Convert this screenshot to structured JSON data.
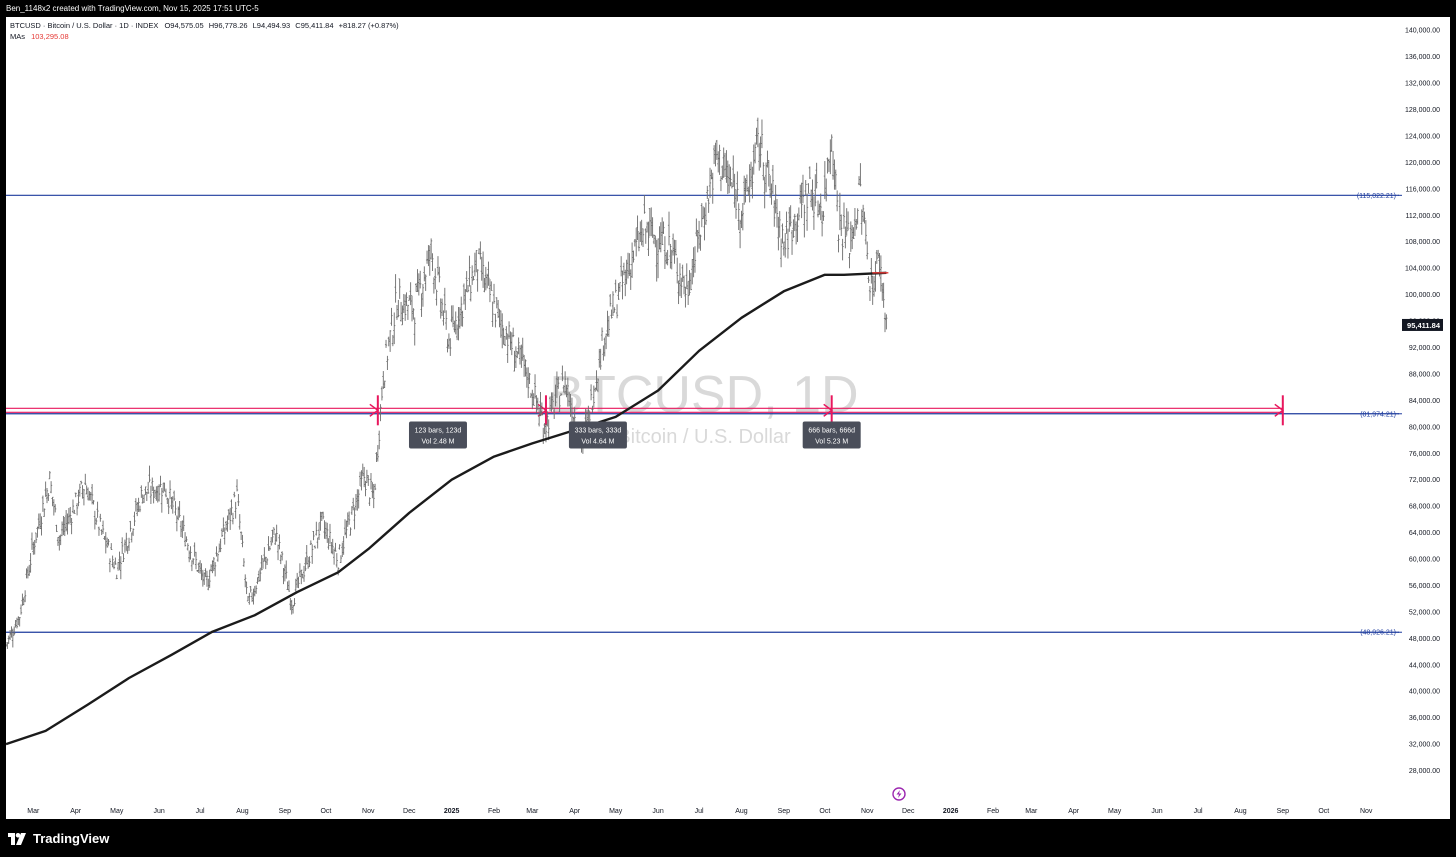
{
  "header": {
    "caption": "Ben_1148x2 created with TradingView.com, Nov 15, 2025 17:51 UTC-5",
    "symbol_line": "BTCUSD · Bitcoin / U.S. Dollar · 1D · INDEX",
    "ohlc": {
      "open": "O94,575.05",
      "high": "H96,778.26",
      "low": "L94,494.93",
      "close": "C95,411.84",
      "change": "+818.27 (+0.87%)"
    },
    "ma_label": "MAs",
    "ma_value": "103,295.08"
  },
  "watermark": {
    "symbol": "BTCUSD, 1D",
    "name": "Bitcoin / U.S. Dollar"
  },
  "footer": {
    "brand": "TradingView"
  },
  "colors": {
    "price_bars": "#6b6b6b",
    "moving_average": "#1b1b1b",
    "horizontal_lines": "#1e3c9e",
    "measure_tool": "#e8175d",
    "ma_value_text": "#e53935",
    "label_bg": "#4a4e5a"
  },
  "chart_data": {
    "type": "ohlc",
    "title": "BTCUSD · Bitcoin / U.S. Dollar · 1D · INDEX",
    "y_range": [
      24000,
      142000
    ],
    "y_ticks": [
      "140,000.00",
      "136,000.00",
      "132,000.00",
      "128,000.00",
      "124,000.00",
      "120,000.00",
      "116,000.00",
      "112,000.00",
      "108,000.00",
      "104,000.00",
      "100,000.00",
      "96,000.00",
      "92,000.00",
      "88,000.00",
      "84,000.00",
      "80,000.00",
      "76,000.00",
      "72,000.00",
      "68,000.00",
      "64,000.00",
      "60,000.00",
      "56,000.00",
      "52,000.00",
      "48,000.00",
      "44,000.00",
      "40,000.00",
      "36,000.00",
      "32,000.00",
      "28,000.00"
    ],
    "x_range": [
      "2024-02-10",
      "2026-11-25"
    ],
    "x_ticks": [
      {
        "label": "Mar",
        "date": "2024-03-01"
      },
      {
        "label": "Apr",
        "date": "2024-04-01"
      },
      {
        "label": "May",
        "date": "2024-05-01"
      },
      {
        "label": "Jun",
        "date": "2024-06-01"
      },
      {
        "label": "Jul",
        "date": "2024-07-01"
      },
      {
        "label": "Aug",
        "date": "2024-08-01"
      },
      {
        "label": "Sep",
        "date": "2024-09-01"
      },
      {
        "label": "Oct",
        "date": "2024-10-01"
      },
      {
        "label": "Nov",
        "date": "2024-11-01"
      },
      {
        "label": "Dec",
        "date": "2024-12-01"
      },
      {
        "label": "2025",
        "date": "2025-01-01",
        "bold": true
      },
      {
        "label": "Feb",
        "date": "2025-02-01"
      },
      {
        "label": "Mar",
        "date": "2025-03-01"
      },
      {
        "label": "Apr",
        "date": "2025-04-01"
      },
      {
        "label": "May",
        "date": "2025-05-01"
      },
      {
        "label": "Jun",
        "date": "2025-06-01"
      },
      {
        "label": "Jul",
        "date": "2025-07-01"
      },
      {
        "label": "Aug",
        "date": "2025-08-01"
      },
      {
        "label": "Sep",
        "date": "2025-09-01"
      },
      {
        "label": "Oct",
        "date": "2025-10-01"
      },
      {
        "label": "Nov",
        "date": "2025-11-01"
      },
      {
        "label": "Dec",
        "date": "2025-12-01"
      },
      {
        "label": "2026",
        "date": "2026-01-01",
        "bold": true
      },
      {
        "label": "Feb",
        "date": "2026-02-01"
      },
      {
        "label": "Mar",
        "date": "2026-03-01"
      },
      {
        "label": "Apr",
        "date": "2026-04-01"
      },
      {
        "label": "May",
        "date": "2026-05-01"
      },
      {
        "label": "Jun",
        "date": "2026-06-01"
      },
      {
        "label": "Jul",
        "date": "2026-07-01"
      },
      {
        "label": "Aug",
        "date": "2026-08-01"
      },
      {
        "label": "Sep",
        "date": "2026-09-01"
      },
      {
        "label": "Oct",
        "date": "2026-10-01"
      },
      {
        "label": "Nov",
        "date": "2026-11-01"
      }
    ],
    "price_series": {
      "name": "BTCUSD",
      "close_path": [
        {
          "date": "2024-02-10",
          "value": 47000
        },
        {
          "date": "2024-02-20",
          "value": 51500
        },
        {
          "date": "2024-03-01",
          "value": 62000
        },
        {
          "date": "2024-03-13",
          "value": 72000
        },
        {
          "date": "2024-03-20",
          "value": 63000
        },
        {
          "date": "2024-04-08",
          "value": 71500
        },
        {
          "date": "2024-04-20",
          "value": 64000
        },
        {
          "date": "2024-05-01",
          "value": 58500
        },
        {
          "date": "2024-05-20",
          "value": 70000
        },
        {
          "date": "2024-06-05",
          "value": 71000
        },
        {
          "date": "2024-06-25",
          "value": 61000
        },
        {
          "date": "2024-07-05",
          "value": 56000
        },
        {
          "date": "2024-07-28",
          "value": 69500
        },
        {
          "date": "2024-08-05",
          "value": 53000
        },
        {
          "date": "2024-08-25",
          "value": 64000
        },
        {
          "date": "2024-09-06",
          "value": 53500
        },
        {
          "date": "2024-09-28",
          "value": 65500
        },
        {
          "date": "2024-10-10",
          "value": 60000
        },
        {
          "date": "2024-10-29",
          "value": 72500
        },
        {
          "date": "2024-11-05",
          "value": 69000
        },
        {
          "date": "2024-11-12",
          "value": 88000
        },
        {
          "date": "2024-11-22",
          "value": 99000
        },
        {
          "date": "2024-12-05",
          "value": 98000
        },
        {
          "date": "2024-12-17",
          "value": 106500
        },
        {
          "date": "2024-12-30",
          "value": 93000
        },
        {
          "date": "2025-01-20",
          "value": 105000
        },
        {
          "date": "2025-02-03",
          "value": 97000
        },
        {
          "date": "2025-02-25",
          "value": 88000
        },
        {
          "date": "2025-03-10",
          "value": 80000
        },
        {
          "date": "2025-03-25",
          "value": 87000
        },
        {
          "date": "2025-04-07",
          "value": 77000
        },
        {
          "date": "2025-04-22",
          "value": 93500
        },
        {
          "date": "2025-05-10",
          "value": 104000
        },
        {
          "date": "2025-05-22",
          "value": 110000
        },
        {
          "date": "2025-06-10",
          "value": 107000
        },
        {
          "date": "2025-06-22",
          "value": 100500
        },
        {
          "date": "2025-07-14",
          "value": 121000
        },
        {
          "date": "2025-08-02",
          "value": 113000
        },
        {
          "date": "2025-08-14",
          "value": 123000
        },
        {
          "date": "2025-09-01",
          "value": 108000
        },
        {
          "date": "2025-09-20",
          "value": 116000
        },
        {
          "date": "2025-09-30",
          "value": 113000
        },
        {
          "date": "2025-10-06",
          "value": 125000
        },
        {
          "date": "2025-10-11",
          "value": 111000
        },
        {
          "date": "2025-10-20",
          "value": 108000
        },
        {
          "date": "2025-10-27",
          "value": 115500
        },
        {
          "date": "2025-11-04",
          "value": 101000
        },
        {
          "date": "2025-11-10",
          "value": 105500
        },
        {
          "date": "2025-11-15",
          "value": 95411.84
        }
      ]
    },
    "moving_average": {
      "name": "MAs",
      "current": 103295.08,
      "path": [
        {
          "date": "2024-02-10",
          "value": 32000
        },
        {
          "date": "2024-03-10",
          "value": 34000
        },
        {
          "date": "2024-04-10",
          "value": 38000
        },
        {
          "date": "2024-05-10",
          "value": 42000
        },
        {
          "date": "2024-06-10",
          "value": 45500
        },
        {
          "date": "2024-07-10",
          "value": 49000
        },
        {
          "date": "2024-08-10",
          "value": 51500
        },
        {
          "date": "2024-09-10",
          "value": 55000
        },
        {
          "date": "2024-10-10",
          "value": 58000
        },
        {
          "date": "2024-11-01",
          "value": 61500
        },
        {
          "date": "2024-12-01",
          "value": 67000
        },
        {
          "date": "2025-01-01",
          "value": 72000
        },
        {
          "date": "2025-02-01",
          "value": 75500
        },
        {
          "date": "2025-03-01",
          "value": 77500
        },
        {
          "date": "2025-04-01",
          "value": 79500
        },
        {
          "date": "2025-05-01",
          "value": 81500
        },
        {
          "date": "2025-06-01",
          "value": 85500
        },
        {
          "date": "2025-07-01",
          "value": 91500
        },
        {
          "date": "2025-08-01",
          "value": 96500
        },
        {
          "date": "2025-09-01",
          "value": 100500
        },
        {
          "date": "2025-10-01",
          "value": 103000
        },
        {
          "date": "2025-10-15",
          "value": 103000
        },
        {
          "date": "2025-11-15",
          "value": 103295.08
        }
      ]
    },
    "current_price_label": "95,411.84",
    "current_price_value": 95411.84,
    "horizontal_lines": [
      {
        "value": 115022.21,
        "label": "(115,022.21)"
      },
      {
        "value": 81974.21,
        "label": "(81,974.21)"
      },
      {
        "value": 48926.21,
        "label": "(48,926.21)"
      }
    ],
    "measure_lines": [
      {
        "value": 82800
      },
      {
        "value": 82200
      }
    ],
    "measure_markers": [
      {
        "date": "2024-11-08"
      },
      {
        "date": "2025-03-11"
      },
      {
        "date": "2025-10-06"
      },
      {
        "date": "2026-09-01"
      }
    ],
    "range_labels": [
      {
        "date": "2024-12-22",
        "value": 79000,
        "line1": "123 bars, 123d",
        "line2": "Vol 2.48 M"
      },
      {
        "date": "2025-04-18",
        "value": 79000,
        "line1": "333 bars, 333d",
        "line2": "Vol 4.64 M"
      },
      {
        "date": "2025-10-06",
        "value": 79000,
        "line1": "666 bars, 666d",
        "line2": "Vol 5.23 M"
      }
    ]
  }
}
